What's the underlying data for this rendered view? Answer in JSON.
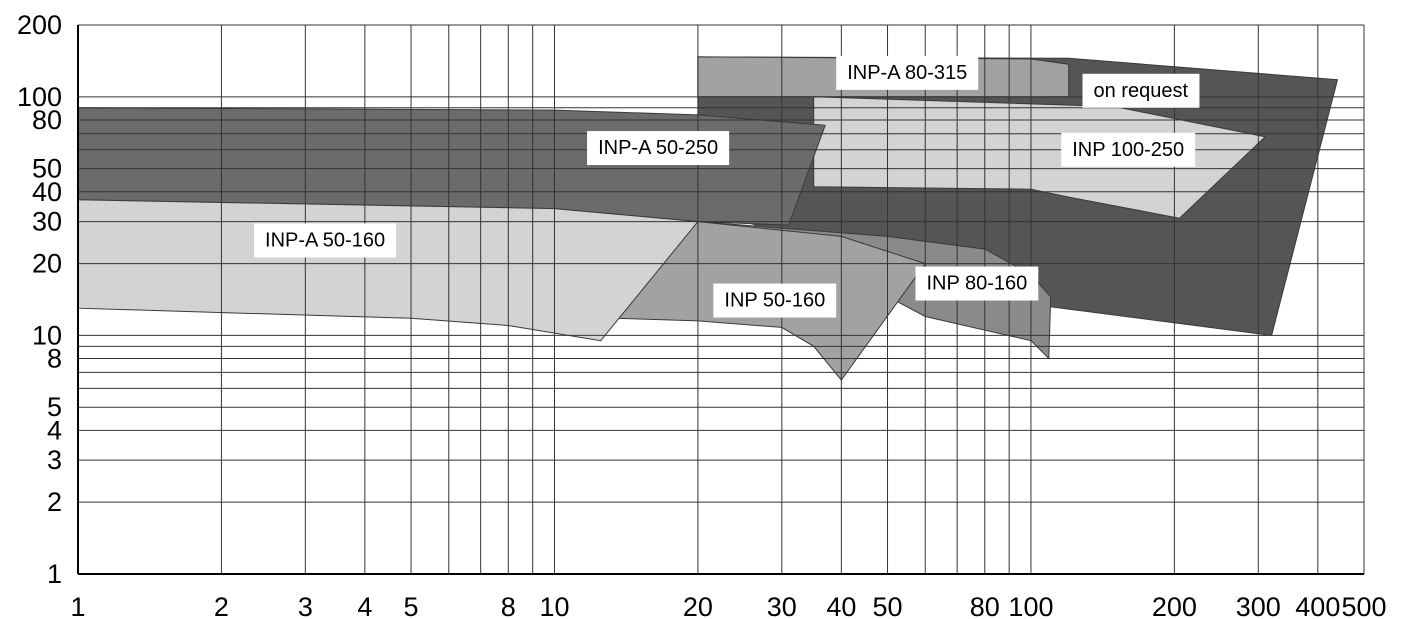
{
  "chart_data": {
    "type": "area",
    "title": "",
    "xlabel": "",
    "ylabel": "",
    "x_scale": "log",
    "y_scale": "log",
    "xlim": [
      1,
      500
    ],
    "ylim": [
      1,
      200
    ],
    "grid": true,
    "x_tick_labels": [
      {
        "value": 1,
        "label": "1"
      },
      {
        "value": 2,
        "label": "2"
      },
      {
        "value": 3,
        "label": "3"
      },
      {
        "value": 4,
        "label": "4"
      },
      {
        "value": 5,
        "label": "5"
      },
      {
        "value": 8,
        "label": "8"
      },
      {
        "value": 10,
        "label": "10"
      },
      {
        "value": 20,
        "label": "20"
      },
      {
        "value": 30,
        "label": "30"
      },
      {
        "value": 40,
        "label": "40"
      },
      {
        "value": 50,
        "label": "50"
      },
      {
        "value": 80,
        "label": "80"
      },
      {
        "value": 100,
        "label": "100"
      },
      {
        "value": 200,
        "label": "200"
      },
      {
        "value": 300,
        "label": "300"
      },
      {
        "value": 400,
        "label": "400"
      },
      {
        "value": 500,
        "label": "500"
      }
    ],
    "y_tick_labels": [
      {
        "value": 1,
        "label": "1"
      },
      {
        "value": 2,
        "label": "2"
      },
      {
        "value": 3,
        "label": "3"
      },
      {
        "value": 4,
        "label": "4"
      },
      {
        "value": 5,
        "label": "5"
      },
      {
        "value": 8,
        "label": "8"
      },
      {
        "value": 10,
        "label": "10"
      },
      {
        "value": 20,
        "label": "20"
      },
      {
        "value": 30,
        "label": "30"
      },
      {
        "value": 40,
        "label": "40"
      },
      {
        "value": 50,
        "label": "50"
      },
      {
        "value": 80,
        "label": "80"
      },
      {
        "value": 100,
        "label": "100"
      },
      {
        "value": 200,
        "label": "200"
      }
    ],
    "x_gridlines": [
      1,
      2,
      3,
      4,
      5,
      6,
      7,
      8,
      9,
      10,
      20,
      30,
      40,
      50,
      60,
      70,
      80,
      90,
      100,
      200,
      300,
      400,
      500
    ],
    "y_gridlines": [
      1,
      2,
      3,
      4,
      5,
      6,
      7,
      8,
      9,
      10,
      20,
      30,
      40,
      50,
      60,
      70,
      80,
      90,
      100,
      200
    ],
    "regions": [
      {
        "name": "on request",
        "fill": "#555555",
        "points": [
          [
            20,
            147
          ],
          [
            120,
            145
          ],
          [
            440,
            118
          ],
          [
            320,
            10
          ],
          [
            100,
            13.5
          ],
          [
            40,
            21
          ],
          [
            20,
            36
          ]
        ],
        "label_at": [
          170,
          106
        ]
      },
      {
        "name": "INP-A 80-315",
        "fill": "#a2a2a2",
        "points": [
          [
            20,
            147
          ],
          [
            100,
            144
          ],
          [
            120,
            137
          ],
          [
            120,
            100
          ],
          [
            20,
            100
          ]
        ],
        "label_at": [
          55,
          126
        ]
      },
      {
        "name": "INP 100-250",
        "fill": "#d3d3d3",
        "points": [
          [
            35,
            100
          ],
          [
            150,
            91
          ],
          [
            310,
            68
          ],
          [
            205,
            31
          ],
          [
            120,
            38
          ],
          [
            100,
            41
          ],
          [
            35,
            42
          ]
        ],
        "label_at": [
          160,
          60
        ]
      },
      {
        "name": "INP-A 50-250",
        "fill": "#6b6b6b",
        "points": [
          [
            1,
            90
          ],
          [
            10,
            88
          ],
          [
            20,
            84
          ],
          [
            37,
            76
          ],
          [
            31,
            29
          ],
          [
            20,
            30
          ],
          [
            10,
            34
          ],
          [
            1,
            37
          ]
        ],
        "label_at": [
          16.5,
          61
        ]
      },
      {
        "name": "INP 80-160",
        "fill": "#8a8a8a",
        "points": [
          [
            20,
            30
          ],
          [
            50,
            26
          ],
          [
            80,
            23
          ],
          [
            100,
            18
          ],
          [
            110,
            14.5
          ],
          [
            109,
            8
          ],
          [
            100,
            9.5
          ],
          [
            60,
            12
          ],
          [
            40,
            18.5
          ],
          [
            30,
            23
          ]
        ],
        "label_at": [
          77,
          16.5
        ]
      },
      {
        "name": "INP 50-160",
        "fill": "#a2a2a2",
        "points": [
          [
            20,
            30
          ],
          [
            40,
            26
          ],
          [
            60,
            20
          ],
          [
            40,
            6.5
          ],
          [
            35,
            9
          ],
          [
            30,
            10.8
          ],
          [
            20,
            11.5
          ],
          [
            13.5,
            11.8
          ],
          [
            20,
            30
          ]
        ],
        "label_at": [
          29,
          14
        ]
      },
      {
        "name": "INP-A 50-160",
        "fill": "#d3d3d3",
        "points": [
          [
            1,
            37
          ],
          [
            10,
            34
          ],
          [
            20,
            30
          ],
          [
            12.5,
            9.5
          ],
          [
            8,
            11
          ],
          [
            5,
            11.8
          ],
          [
            1,
            13
          ]
        ],
        "label_at": [
          3.3,
          25
        ]
      }
    ]
  }
}
